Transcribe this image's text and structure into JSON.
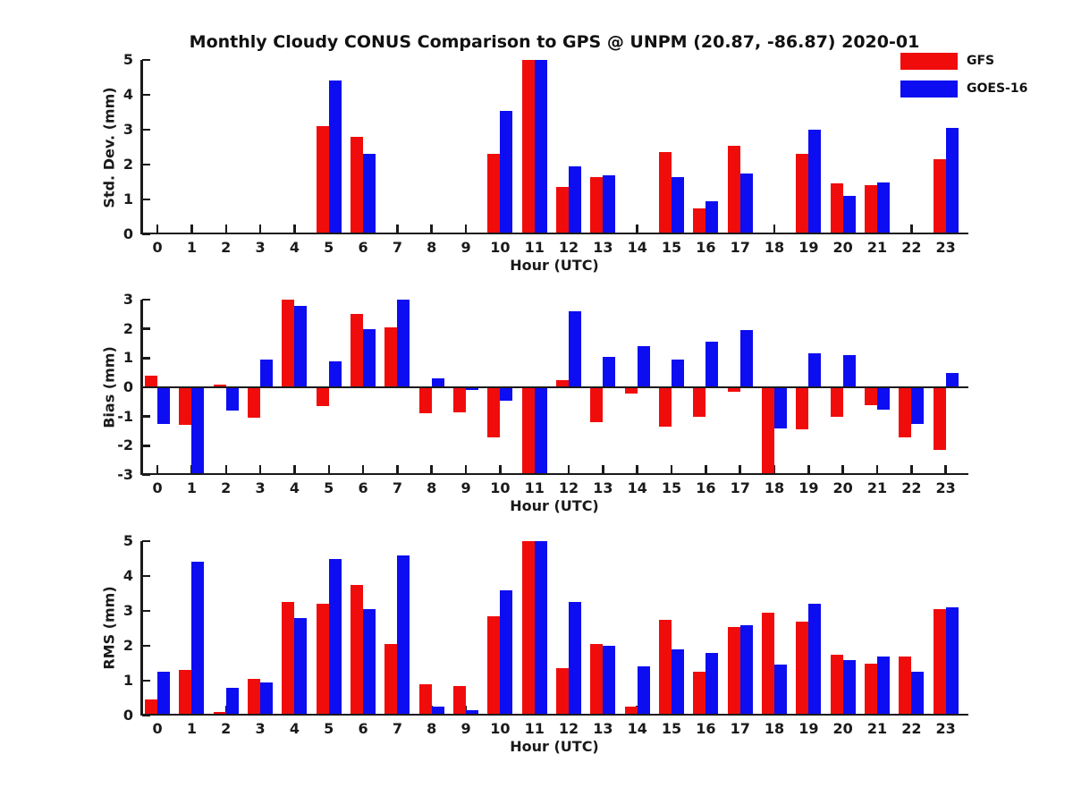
{
  "title": "Monthly Cloudy CONUS Comparison to GPS @ UNPM (20.87, -86.87) 2020-01",
  "colors": {
    "gfs": "#f10c0c",
    "goes16": "#0d0df1",
    "axis": "#1a1a1a"
  },
  "legend": {
    "position": "top-right",
    "items": [
      {
        "label": "GFS",
        "color": "#f10c0c"
      },
      {
        "label": "GOES-16",
        "color": "#0d0df1"
      }
    ]
  },
  "chart_data": [
    {
      "type": "bar",
      "title": "",
      "ylabel": "Std. Dev. (mm)",
      "xlabel": "Hour (UTC)",
      "ylim": [
        0,
        5
      ],
      "yticks": [
        0,
        1,
        2,
        3,
        4,
        5
      ],
      "grid": false,
      "categories": [
        "0",
        "1",
        "2",
        "3",
        "4",
        "5",
        "6",
        "7",
        "8",
        "9",
        "10",
        "11",
        "12",
        "13",
        "14",
        "15",
        "16",
        "17",
        "18",
        "19",
        "20",
        "21",
        "22",
        "23"
      ],
      "series": [
        {
          "name": "GFS",
          "color": "#f10c0c",
          "values": [
            null,
            null,
            null,
            null,
            null,
            3.1,
            2.8,
            null,
            null,
            null,
            2.3,
            5,
            1.35,
            1.65,
            null,
            2.35,
            0.75,
            2.55,
            null,
            2.3,
            1.45,
            1.4,
            null,
            2.15
          ]
        },
        {
          "name": "GOES-16",
          "color": "#0d0df1",
          "values": [
            null,
            null,
            null,
            null,
            null,
            4.4,
            2.3,
            null,
            null,
            null,
            3.55,
            5,
            1.95,
            1.7,
            null,
            1.65,
            0.95,
            1.75,
            null,
            3,
            1.1,
            1.5,
            null,
            3.05
          ]
        }
      ]
    },
    {
      "type": "bar",
      "title": "",
      "ylabel": "Bias (mm)",
      "xlabel": "Hour (UTC)",
      "ylim": [
        -3,
        3
      ],
      "yticks": [
        -3,
        -2,
        -1,
        0,
        1,
        2,
        3
      ],
      "zero_line": true,
      "grid": false,
      "categories": [
        "0",
        "1",
        "2",
        "3",
        "4",
        "5",
        "6",
        "7",
        "8",
        "9",
        "10",
        "11",
        "12",
        "13",
        "14",
        "15",
        "16",
        "17",
        "18",
        "19",
        "20",
        "21",
        "22",
        "23"
      ],
      "series": [
        {
          "name": "GFS",
          "color": "#f10c0c",
          "values": [
            0.4,
            -1.3,
            0.1,
            -1.05,
            3,
            -0.65,
            2.5,
            2.05,
            -0.9,
            -0.85,
            -1.7,
            -3,
            0.25,
            -1.2,
            -0.2,
            -1.35,
            -1,
            -0.15,
            -3,
            -1.45,
            -1,
            -0.6,
            -1.7,
            -2.15
          ]
        },
        {
          "name": "GOES-16",
          "color": "#0d0df1",
          "values": [
            -1.25,
            -3,
            -0.8,
            0.95,
            2.8,
            0.9,
            2,
            3,
            0.3,
            -0.1,
            -0.45,
            -3,
            2.6,
            1.05,
            1.4,
            0.95,
            1.55,
            1.95,
            -1.4,
            1.15,
            1.1,
            -0.75,
            -1.25,
            0.5
          ]
        }
      ]
    },
    {
      "type": "bar",
      "title": "",
      "ylabel": "RMS (mm)",
      "xlabel": "Hour (UTC)",
      "ylim": [
        0,
        5
      ],
      "yticks": [
        0,
        1,
        2,
        3,
        4,
        5
      ],
      "grid": false,
      "categories": [
        "0",
        "1",
        "2",
        "3",
        "4",
        "5",
        "6",
        "7",
        "8",
        "9",
        "10",
        "11",
        "12",
        "13",
        "14",
        "15",
        "16",
        "17",
        "18",
        "19",
        "20",
        "21",
        "22",
        "23"
      ],
      "series": [
        {
          "name": "GFS",
          "color": "#f10c0c",
          "values": [
            0.45,
            1.3,
            0.1,
            1.05,
            3.25,
            3.2,
            3.75,
            2.05,
            0.9,
            0.85,
            2.85,
            5,
            1.35,
            2.05,
            0.25,
            2.75,
            1.25,
            2.55,
            2.95,
            2.7,
            1.75,
            1.5,
            1.7,
            3.05
          ]
        },
        {
          "name": "GOES-16",
          "color": "#0d0df1",
          "values": [
            1.25,
            4.4,
            0.8,
            0.95,
            2.8,
            4.5,
            3.05,
            4.6,
            0.25,
            0.15,
            3.6,
            5,
            3.25,
            2,
            1.4,
            1.9,
            1.8,
            2.6,
            1.45,
            3.2,
            1.6,
            1.7,
            1.25,
            3.1
          ]
        }
      ]
    }
  ]
}
